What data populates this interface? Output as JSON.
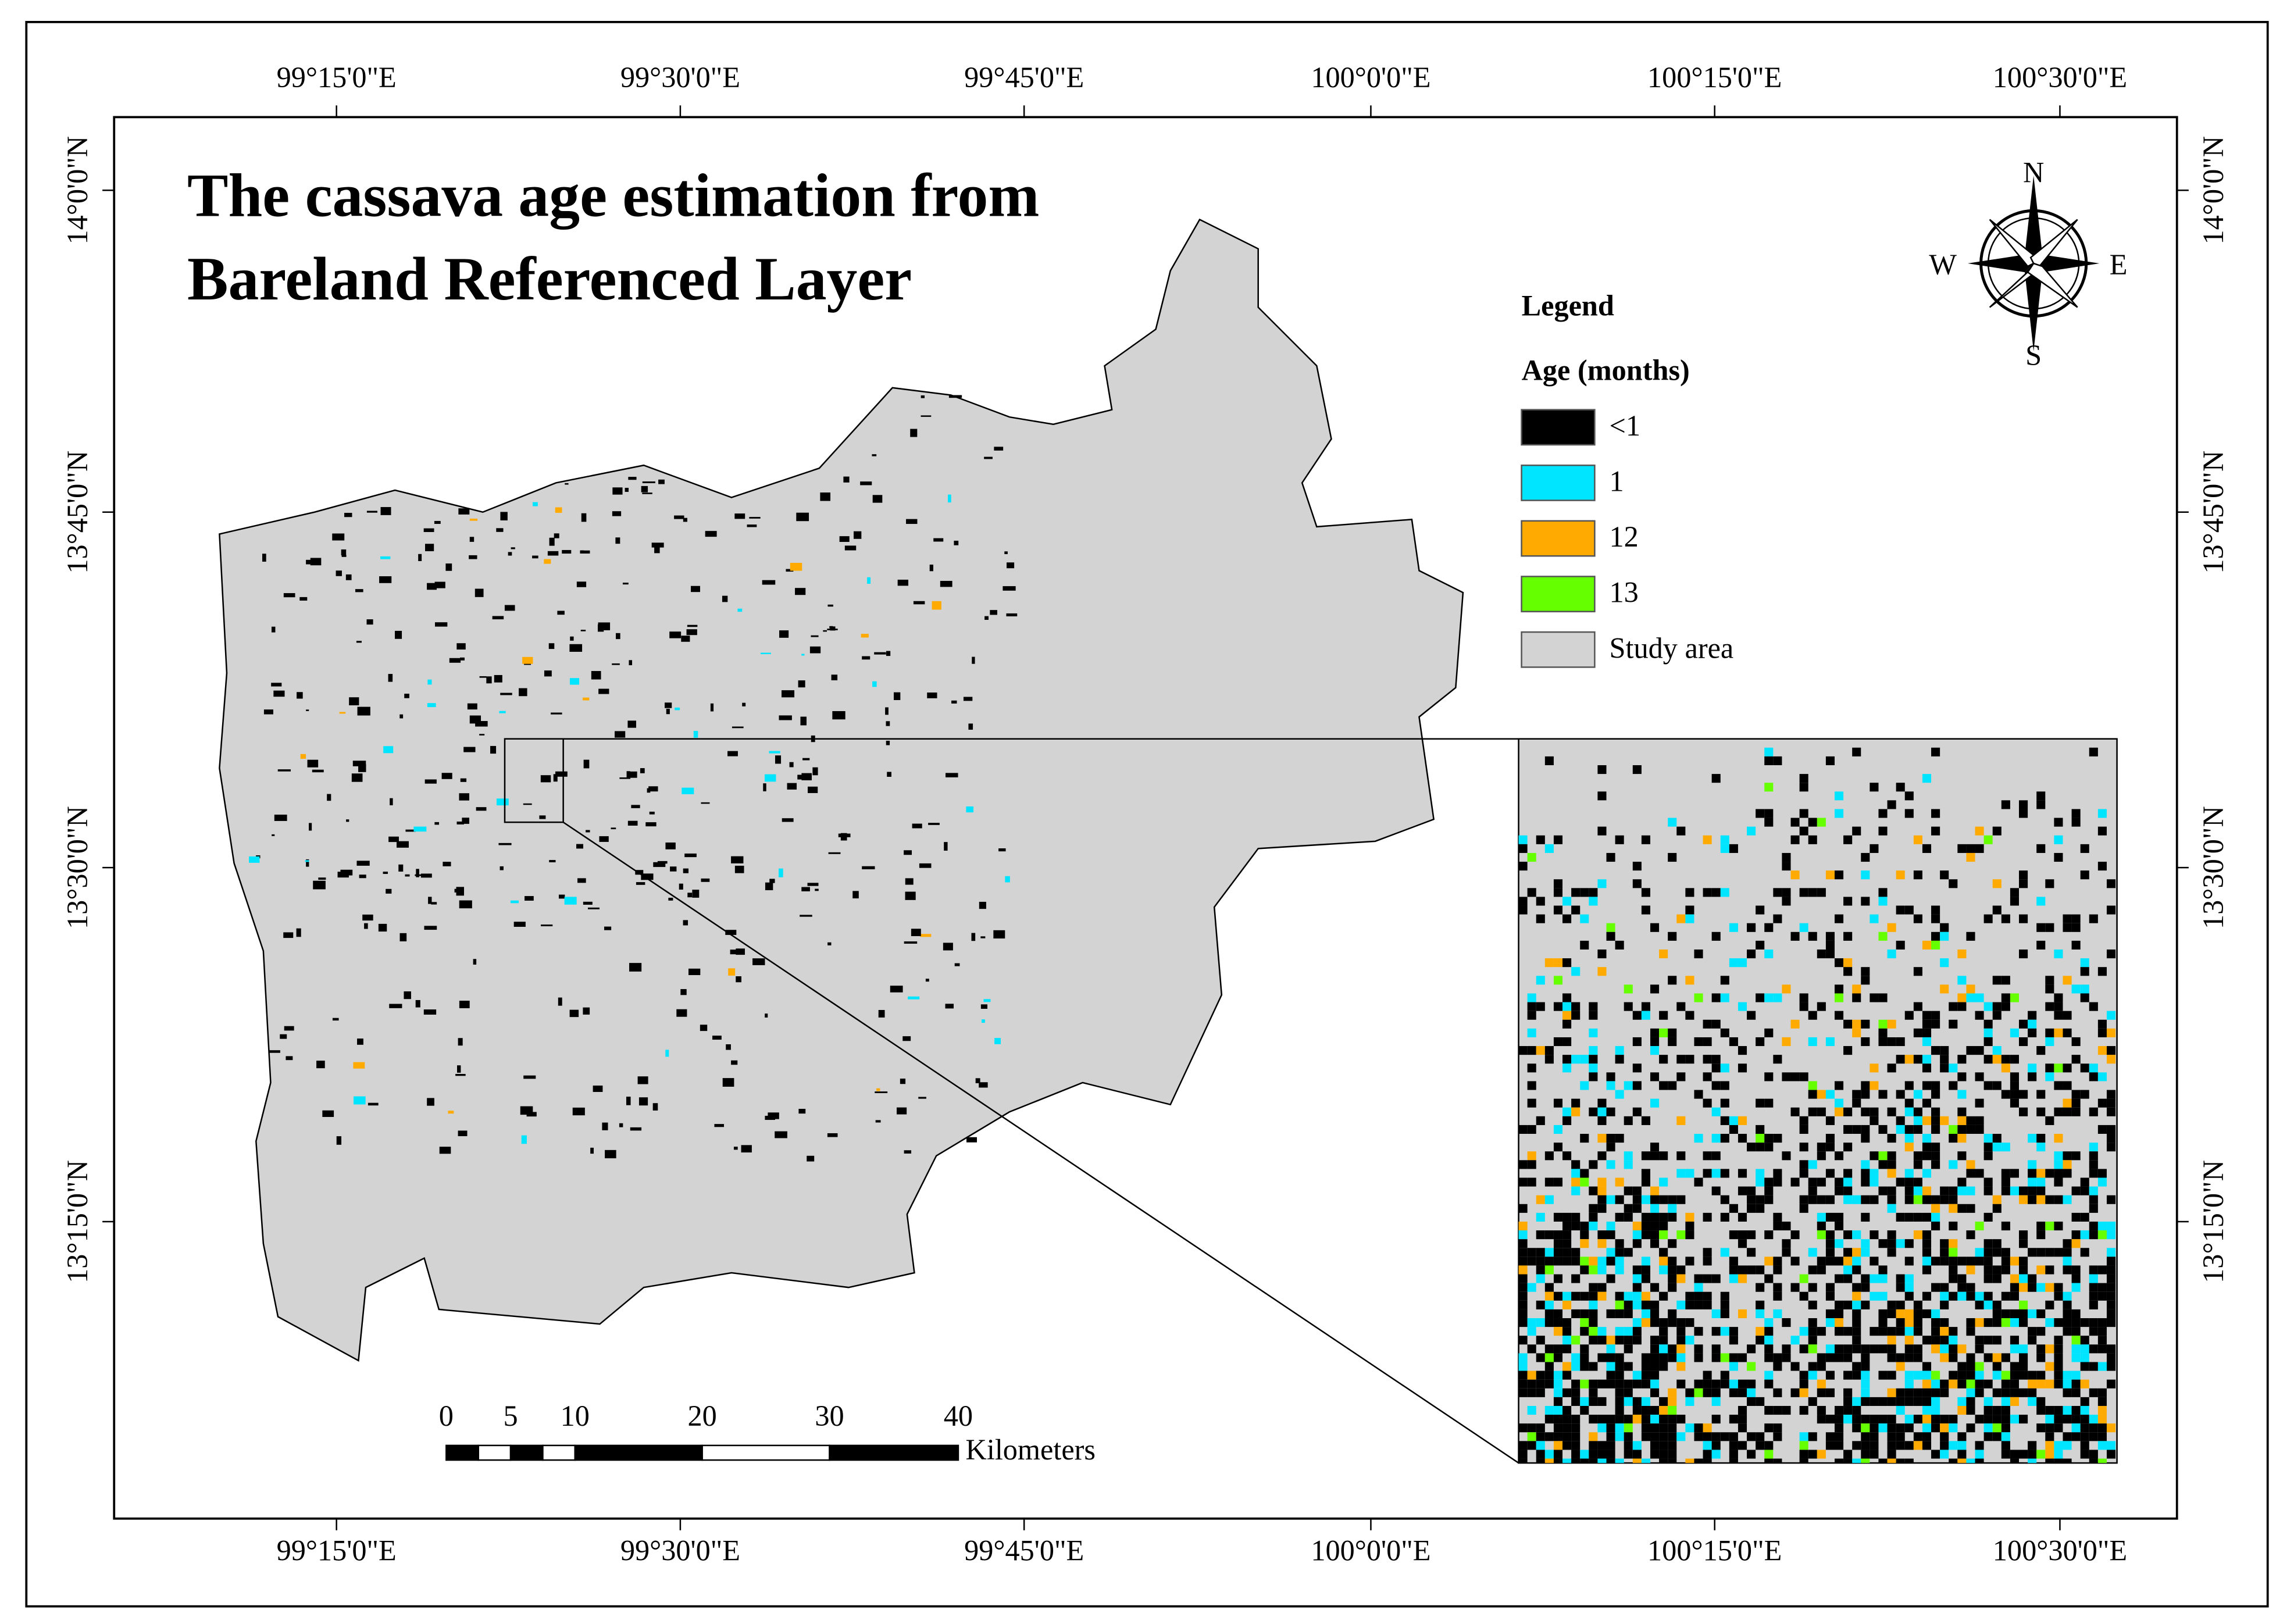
{
  "title": [
    "The cassava age estimation from",
    "Bareland Referenced Layer"
  ],
  "legend": {
    "title": "Legend",
    "subtitle": "Age (months)",
    "items": [
      {
        "label": "<1",
        "color": "#000000"
      },
      {
        "label": "1",
        "color": "#00e5ff"
      },
      {
        "label": "12",
        "color": "#ffaa00"
      },
      {
        "label": "13",
        "color": "#66ff00"
      },
      {
        "label": "Study area",
        "color": "#d3d3d3"
      }
    ]
  },
  "compass": {
    "n": "N",
    "e": "E",
    "s": "S",
    "w": "W"
  },
  "longitude_labels": [
    "99°15'0\"E",
    "99°30'0\"E",
    "99°45'0\"E",
    "100°0'0\"E",
    "100°15'0\"E",
    "100°30'0\"E"
  ],
  "latitude_labels": [
    "14°0'0\"N",
    "13°45'0\"N",
    "13°30'0\"N",
    "13°15'0\"N"
  ],
  "scale_bar": {
    "labels": [
      "0",
      "5",
      "10",
      "20",
      "30",
      "40"
    ],
    "unit": "Kilometers"
  }
}
